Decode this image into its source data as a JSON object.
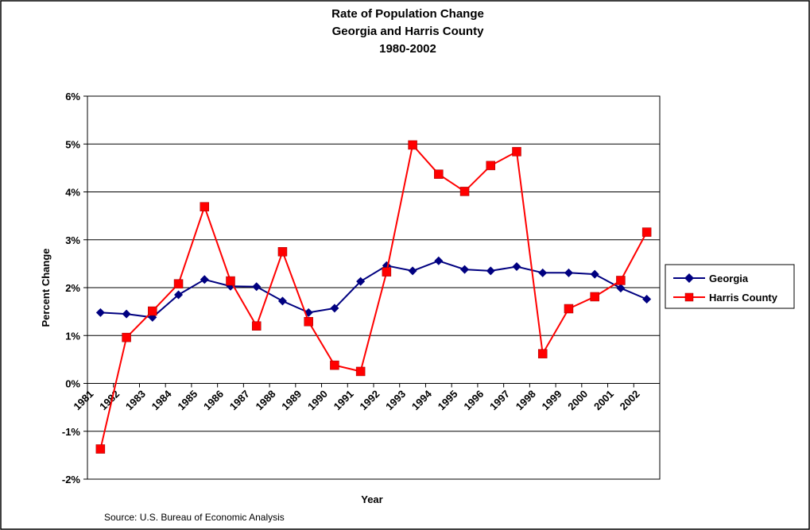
{
  "chart_data": {
    "type": "line",
    "title": [
      "Rate of Population Change",
      "Georgia and Harris County",
      "1980-2002"
    ],
    "xlabel": "Year",
    "ylabel": "Percent Change",
    "categories": [
      "1981",
      "1982",
      "1983",
      "1984",
      "1985",
      "1986",
      "1987",
      "1988",
      "1989",
      "1990",
      "1991",
      "1992",
      "1993",
      "1994",
      "1995",
      "1996",
      "1997",
      "1998",
      "1999",
      "2000",
      "2001",
      "2002"
    ],
    "ylim": [
      -2,
      6
    ],
    "yticks": [
      -2,
      -1,
      0,
      1,
      2,
      3,
      4,
      5,
      6
    ],
    "ytick_labels": [
      "-2%",
      "-1%",
      "0%",
      "1%",
      "2%",
      "3%",
      "4%",
      "5%",
      "6%"
    ],
    "grid": "horizontal",
    "legend_position": "right",
    "series": [
      {
        "name": "Georgia",
        "color": "#000080",
        "marker": "diamond",
        "values": [
          1.48,
          1.45,
          1.38,
          1.85,
          2.17,
          2.03,
          2.02,
          1.72,
          1.48,
          1.57,
          2.13,
          2.46,
          2.35,
          2.56,
          2.38,
          2.35,
          2.44,
          2.31,
          2.31,
          2.28,
          1.99,
          1.76
        ]
      },
      {
        "name": "Harris County",
        "color": "#FF0000",
        "marker": "square",
        "values": [
          -1.37,
          0.96,
          1.51,
          2.08,
          3.69,
          2.14,
          1.2,
          2.75,
          1.29,
          0.38,
          0.25,
          2.33,
          4.98,
          4.37,
          4.01,
          4.55,
          4.84,
          0.62,
          1.56,
          1.81,
          2.15,
          3.16
        ]
      }
    ],
    "source": "Source: U.S. Bureau of Economic Analysis"
  }
}
